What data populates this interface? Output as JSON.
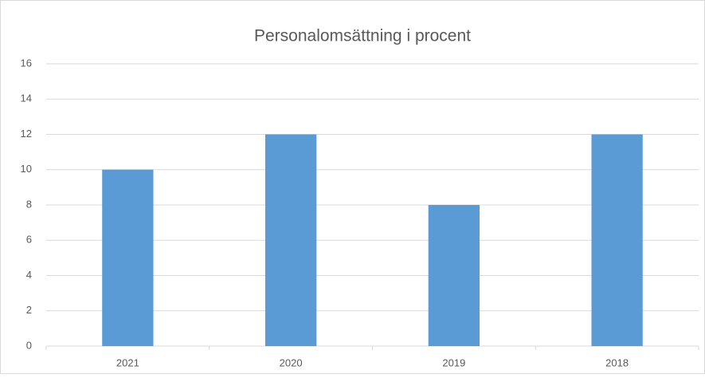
{
  "chart_data": {
    "type": "bar",
    "title": "Personalomsättning i procent",
    "categories": [
      "2021",
      "2020",
      "2019",
      "2018"
    ],
    "values": [
      10,
      12,
      8,
      12
    ],
    "color": "#5b9bd5",
    "ylim": [
      0,
      16
    ],
    "yticks": [
      0,
      2,
      4,
      6,
      8,
      10,
      12,
      14,
      16
    ],
    "grid": true
  }
}
